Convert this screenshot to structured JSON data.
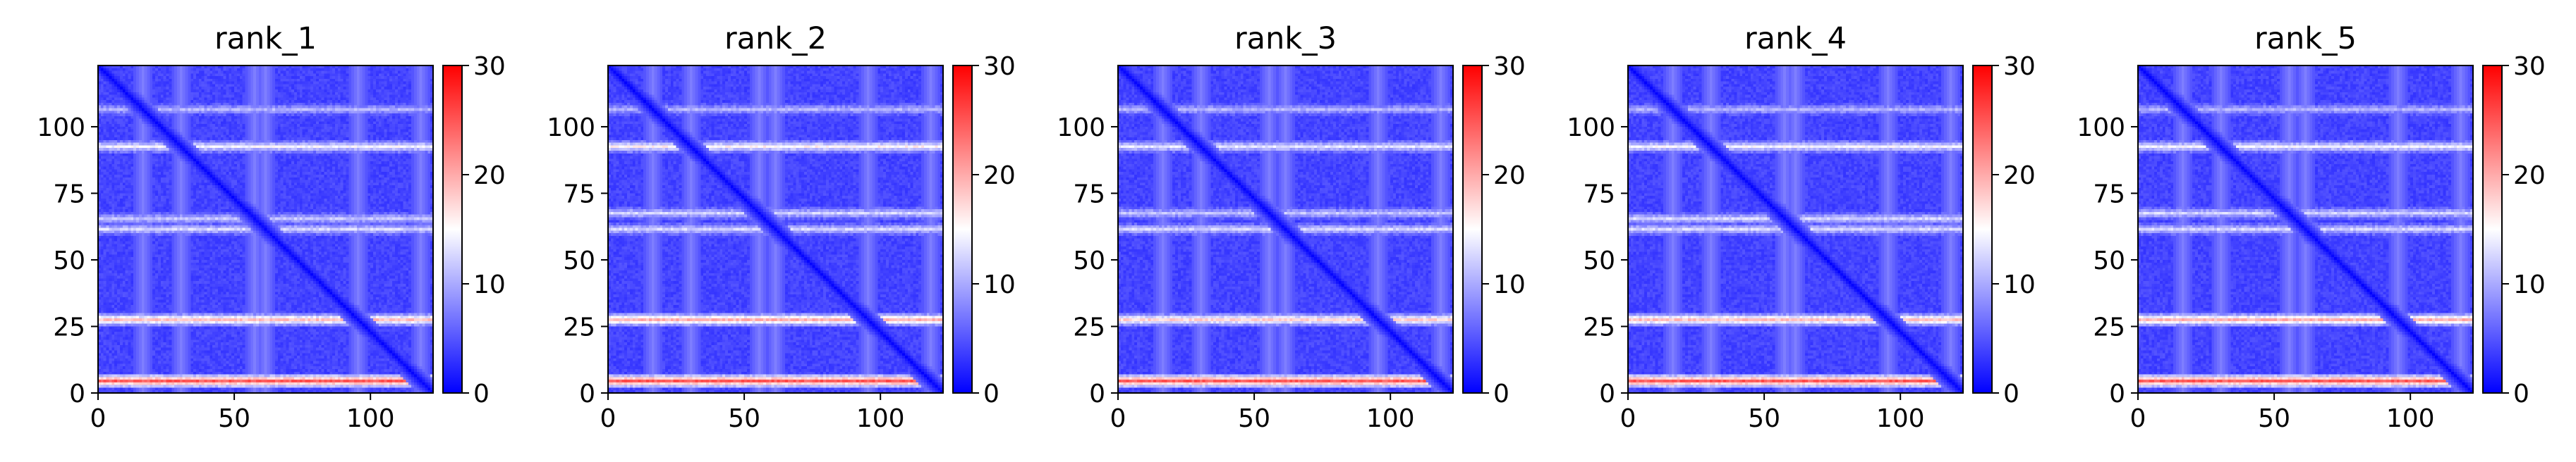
{
  "chart_data": [
    {
      "type": "heatmap",
      "title": "rank_1",
      "xlabel": "",
      "ylabel": "",
      "x_ticks": [
        0,
        50,
        100
      ],
      "y_ticks": [
        0,
        25,
        50,
        75,
        100
      ],
      "x_range": [
        0,
        123
      ],
      "y_range": [
        123,
        0
      ],
      "colorbar": {
        "ticks": [
          0,
          10,
          20,
          30
        ],
        "range": [
          0,
          30
        ],
        "colormap": "bwr"
      },
      "pattern": {
        "size": 123,
        "base": 3,
        "bright_rows": [
          16,
          30,
          57,
          61,
          95,
          118
        ],
        "bright_row_levels": [
          10,
          14,
          11,
          12,
          18,
          24
        ],
        "diagonal_value": 0,
        "grid_on": false
      }
    },
    {
      "type": "heatmap",
      "title": "rank_2",
      "xlabel": "",
      "ylabel": "",
      "x_ticks": [
        0,
        50,
        100
      ],
      "y_ticks": [
        0,
        25,
        50,
        75,
        100
      ],
      "x_range": [
        0,
        123
      ],
      "y_range": [
        123,
        0
      ],
      "colorbar": {
        "ticks": [
          0,
          10,
          20,
          30
        ],
        "range": [
          0,
          30
        ],
        "colormap": "bwr"
      },
      "pattern": {
        "size": 123,
        "base": 3,
        "bright_rows": [
          16,
          30,
          55,
          61,
          95,
          118
        ],
        "bright_row_levels": [
          10,
          15,
          12,
          12,
          19,
          24
        ],
        "diagonal_value": 0,
        "grid_on": false
      }
    },
    {
      "type": "heatmap",
      "title": "rank_3",
      "xlabel": "",
      "ylabel": "",
      "x_ticks": [
        0,
        50,
        100
      ],
      "y_ticks": [
        0,
        25,
        50,
        75,
        100
      ],
      "x_range": [
        0,
        123
      ],
      "y_range": [
        123,
        0
      ],
      "colorbar": {
        "ticks": [
          0,
          10,
          20,
          30
        ],
        "range": [
          0,
          30
        ],
        "colormap": "bwr"
      },
      "pattern": {
        "size": 123,
        "base": 3,
        "bright_rows": [
          16,
          30,
          55,
          61,
          95,
          118
        ],
        "bright_row_levels": [
          10,
          13,
          11,
          12,
          17,
          24
        ],
        "diagonal_value": 0,
        "grid_on": false
      }
    },
    {
      "type": "heatmap",
      "title": "rank_4",
      "xlabel": "",
      "ylabel": "",
      "x_ticks": [
        0,
        50,
        100
      ],
      "y_ticks": [
        0,
        25,
        50,
        75,
        100
      ],
      "x_range": [
        0,
        123
      ],
      "y_range": [
        123,
        0
      ],
      "colorbar": {
        "ticks": [
          0,
          10,
          20,
          30
        ],
        "range": [
          0,
          30
        ],
        "colormap": "bwr"
      },
      "pattern": {
        "size": 123,
        "base": 3,
        "bright_rows": [
          16,
          30,
          57,
          61,
          95,
          118
        ],
        "bright_row_levels": [
          10,
          14,
          12,
          12,
          18,
          24
        ],
        "diagonal_value": 0,
        "grid_on": false
      }
    },
    {
      "type": "heatmap",
      "title": "rank_5",
      "xlabel": "",
      "ylabel": "",
      "x_ticks": [
        0,
        50,
        100
      ],
      "y_ticks": [
        0,
        25,
        50,
        75,
        100
      ],
      "x_range": [
        0,
        123
      ],
      "y_range": [
        123,
        0
      ],
      "colorbar": {
        "ticks": [
          0,
          10,
          20,
          30
        ],
        "range": [
          0,
          30
        ],
        "colormap": "bwr"
      },
      "pattern": {
        "size": 123,
        "base": 3,
        "bright_rows": [
          16,
          30,
          55,
          61,
          95,
          118
        ],
        "bright_row_levels": [
          10,
          14,
          12,
          12,
          19,
          24
        ],
        "diagonal_value": 0,
        "grid_on": false
      }
    }
  ]
}
